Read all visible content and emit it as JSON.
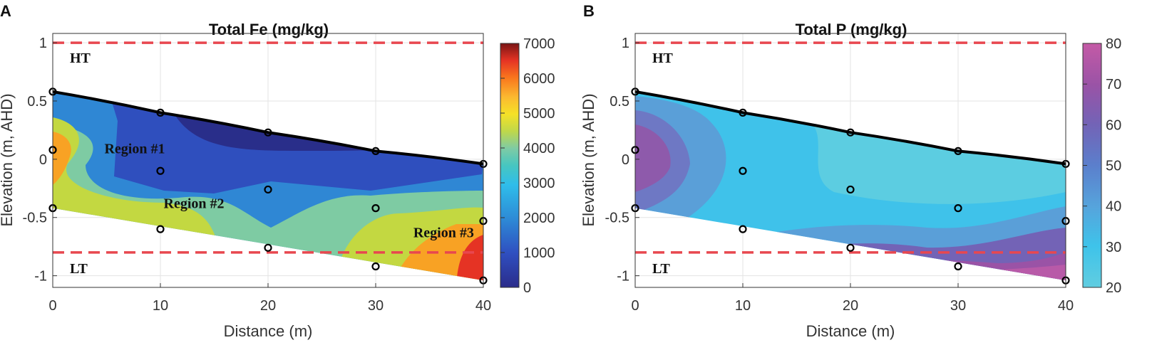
{
  "chart_data": [
    {
      "panel": "A",
      "type": "heatmap",
      "title": "Total Fe (mg/kg)",
      "xlabel": "Distance (m)",
      "ylabel": "Elevation (m, AHD)",
      "xlim": [
        0,
        40
      ],
      "ylim": [
        -1.1,
        1.0
      ],
      "xticks": [
        0,
        10,
        20,
        30,
        40
      ],
      "yticks": [
        -1,
        -0.5,
        0,
        0.5,
        1
      ],
      "ytick_labels": [
        "-1",
        "-0.5",
        "0",
        "0.5",
        "1"
      ],
      "colorbar": {
        "min": 0,
        "max": 7000,
        "ticks": [
          0,
          1000,
          2000,
          3000,
          4000,
          5000,
          6000,
          7000
        ],
        "colormap": "parula"
      },
      "reference_lines": [
        {
          "label": "HT",
          "y": 1.0,
          "color": "#e8474f"
        },
        {
          "label": "LT",
          "y": -0.8,
          "color": "#e8474f"
        }
      ],
      "surface_line": {
        "x": [
          0,
          10,
          20,
          30,
          40
        ],
        "y": [
          0.58,
          0.4,
          0.23,
          0.07,
          -0.04
        ]
      },
      "base_line": {
        "x": [
          0,
          40
        ],
        "y": [
          -0.42,
          -1.04
        ]
      },
      "sample_points": {
        "x": [
          0,
          0,
          0,
          10,
          10,
          10,
          20,
          20,
          20,
          30,
          30,
          30,
          40,
          40,
          40
        ],
        "y": [
          0.58,
          0.08,
          -0.42,
          0.4,
          -0.1,
          -0.6,
          0.23,
          -0.26,
          -0.76,
          0.07,
          -0.42,
          -0.92,
          -0.04,
          -0.53,
          -1.04
        ]
      },
      "annotations": [
        {
          "text": "Region #1",
          "x": 4.8,
          "y": 0.05
        },
        {
          "text": "Region #2",
          "x": 10.3,
          "y": -0.42
        },
        {
          "text": "Region #3",
          "x": 33.5,
          "y": -0.67
        }
      ]
    },
    {
      "panel": "B",
      "type": "heatmap",
      "title": "Total P (mg/kg)",
      "xlabel": "Distance (m)",
      "ylabel": "Elevation (m, AHD)",
      "xlim": [
        0,
        40
      ],
      "ylim": [
        -1.1,
        1.0
      ],
      "xticks": [
        0,
        10,
        20,
        30,
        40
      ],
      "yticks": [
        -1,
        -0.5,
        0,
        0.5,
        1
      ],
      "ytick_labels": [
        "-1",
        "-0.5",
        "0",
        "0.5",
        "1"
      ],
      "colorbar": {
        "min": 20,
        "max": 80,
        "ticks": [
          20,
          30,
          40,
          50,
          60,
          70,
          80
        ],
        "colormap": "cool-purple"
      },
      "reference_lines": [
        {
          "label": "HT",
          "y": 1.0,
          "color": "#e8474f"
        },
        {
          "label": "LT",
          "y": -0.8,
          "color": "#e8474f"
        }
      ],
      "surface_line": {
        "x": [
          0,
          10,
          20,
          30,
          40
        ],
        "y": [
          0.58,
          0.4,
          0.23,
          0.07,
          -0.04
        ]
      },
      "base_line": {
        "x": [
          0,
          40
        ],
        "y": [
          -0.42,
          -1.04
        ]
      },
      "sample_points": {
        "x": [
          0,
          0,
          0,
          10,
          10,
          10,
          20,
          20,
          20,
          30,
          30,
          30,
          40,
          40,
          40
        ],
        "y": [
          0.58,
          0.08,
          -0.42,
          0.4,
          -0.1,
          -0.6,
          0.23,
          -0.26,
          -0.76,
          0.07,
          -0.42,
          -0.92,
          -0.04,
          -0.53,
          -1.04
        ]
      },
      "annotations": []
    }
  ]
}
